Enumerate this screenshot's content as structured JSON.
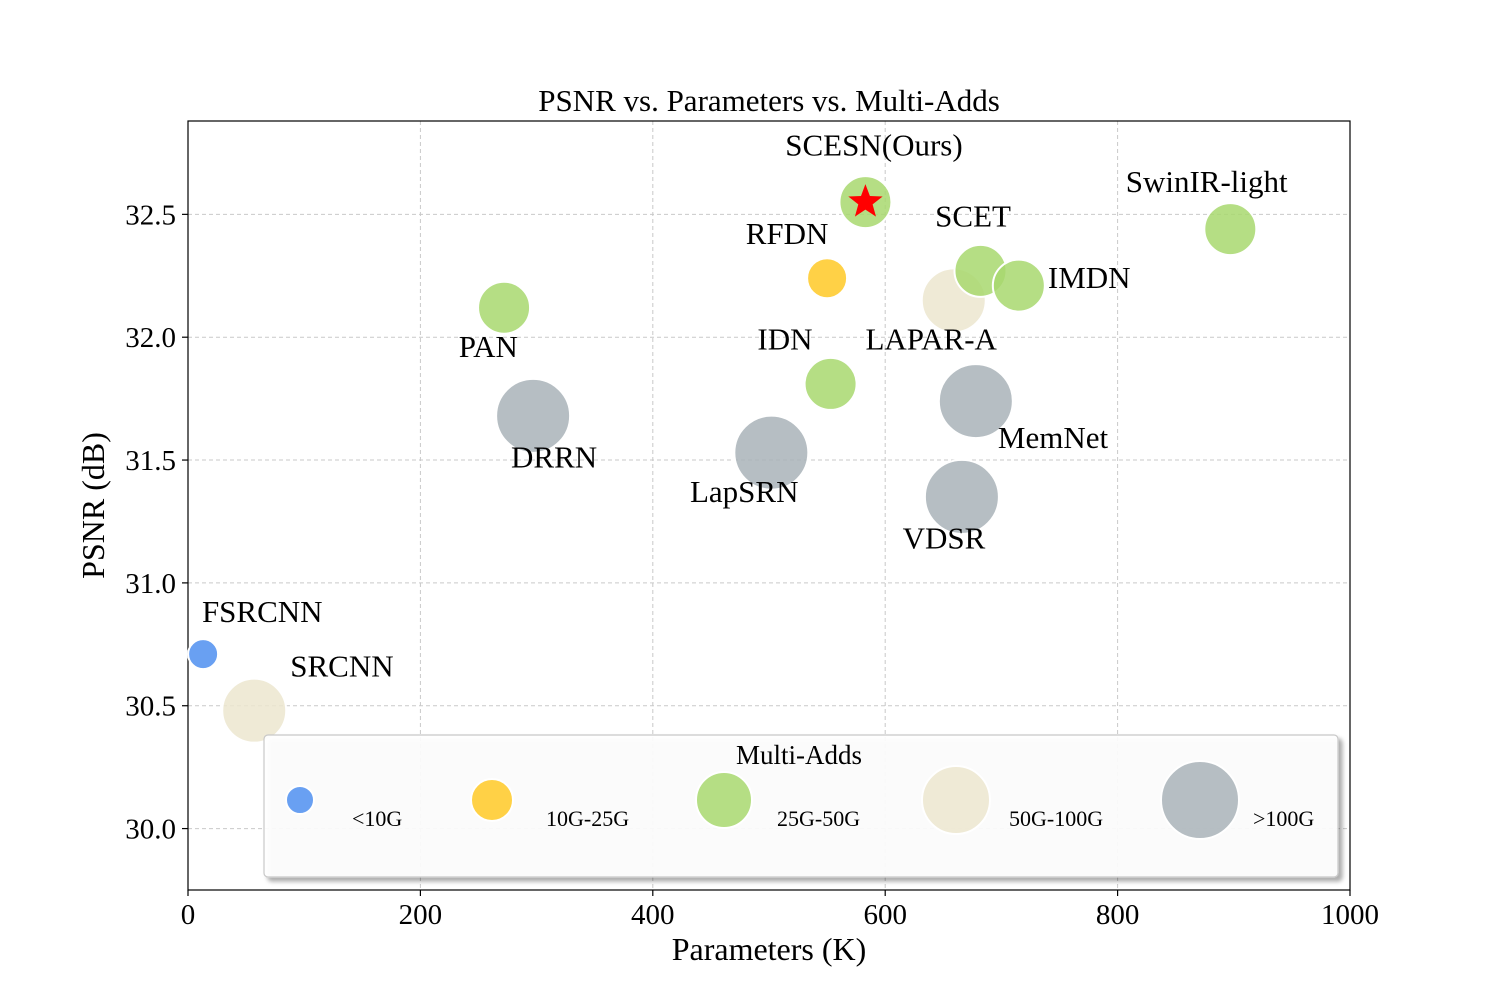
{
  "chart_data": {
    "type": "scatter",
    "title": "PSNR vs. Parameters vs. Multi-Adds",
    "xlabel": "Parameters (K)",
    "ylabel": "PSNR (dB)",
    "xlim": [
      0,
      1000
    ],
    "ylim": [
      29.75,
      32.88
    ],
    "xticks": [
      0,
      200,
      400,
      600,
      800,
      1000
    ],
    "xtick_labels": [
      "0",
      "200",
      "400",
      "600",
      "800",
      "1000"
    ],
    "yticks": [
      30.0,
      30.5,
      31.0,
      31.5,
      32.0,
      32.5
    ],
    "ytick_labels": [
      "30.0",
      "30.5",
      "31.0",
      "31.5",
      "32.0",
      "32.5"
    ],
    "grid": true,
    "size_encoding": "Multi-Adds",
    "categories": [
      {
        "key": "lt10",
        "label": "<10G",
        "color": "#4f8ff0"
      },
      {
        "key": "10to25",
        "label": "10G-25G",
        "color": "#ffc926"
      },
      {
        "key": "25to50",
        "label": "25G-50G",
        "color": "#a8d86e"
      },
      {
        "key": "50to100",
        "label": "50G-100G",
        "color": "#ece6cf"
      },
      {
        "key": "gt100",
        "label": ">100G",
        "color": "#a9b3b9"
      }
    ],
    "points": [
      {
        "name": "FSRCNN",
        "x": 13,
        "y": 30.71,
        "category": "lt10",
        "label_dx": 12,
        "label_dy": 30.84
      },
      {
        "name": "SRCNN",
        "x": 57,
        "y": 30.48,
        "category": "50to100",
        "label_dx": 88,
        "label_dy": 30.62
      },
      {
        "name": "PAN",
        "x": 272,
        "y": 32.12,
        "category": "25to50",
        "label_dx": 233,
        "label_dy": 31.92
      },
      {
        "name": "DRRN",
        "x": 297,
        "y": 31.68,
        "category": "gt100",
        "label_dx": 278,
        "label_dy": 31.47
      },
      {
        "name": "LapSRN",
        "x": 502,
        "y": 31.53,
        "category": "gt100",
        "label_dx": 432,
        "label_dy": 31.33
      },
      {
        "name": "IDN",
        "x": 553,
        "y": 31.81,
        "category": "25to50",
        "label_dx": 490,
        "label_dy": 31.95
      },
      {
        "name": "RFDN",
        "x": 550,
        "y": 32.24,
        "category": "10to25",
        "label_dx": 480,
        "label_dy": 32.38
      },
      {
        "name": "SCESN(Ours)",
        "x": 583,
        "y": 32.55,
        "category": "25to50",
        "highlight": true,
        "label_dx": 514,
        "label_dy": 32.74
      },
      {
        "name": "LAPAR-A",
        "x": 659,
        "y": 32.15,
        "category": "50to100",
        "label_dx": 583,
        "label_dy": 31.95
      },
      {
        "name": "SCET",
        "x": 682,
        "y": 32.27,
        "category": "25to50",
        "label_dx": 643,
        "label_dy": 32.45
      },
      {
        "name": "IMDN",
        "x": 715,
        "y": 32.21,
        "category": "25to50",
        "label_dx": 740,
        "label_dy": 32.2
      },
      {
        "name": "MemNet",
        "x": 678,
        "y": 31.74,
        "category": "gt100",
        "label_dx": 697,
        "label_dy": 31.55
      },
      {
        "name": "VDSR",
        "x": 666,
        "y": 31.35,
        "category": "gt100",
        "label_dx": 615,
        "label_dy": 31.14
      },
      {
        "name": "SwinIR-light",
        "x": 897,
        "y": 32.44,
        "category": "25to50",
        "label_dx": 807,
        "label_dy": 32.59
      }
    ],
    "legend": {
      "title": "Multi-Adds",
      "placement": "lower-center"
    }
  }
}
